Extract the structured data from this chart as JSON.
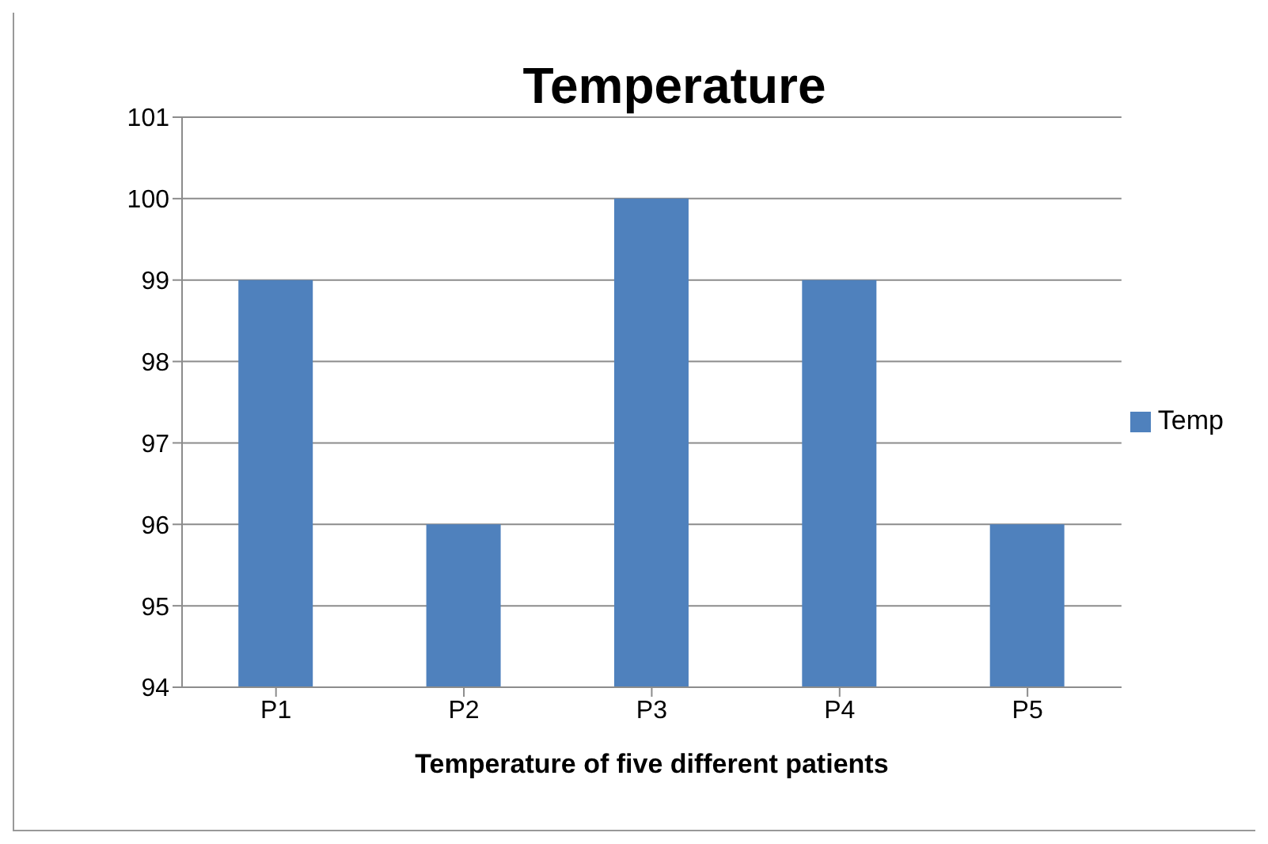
{
  "chart_data": {
    "type": "bar",
    "title": "Temperature",
    "xlabel": "Temperature of five different patients",
    "categories": [
      "P1",
      "P2",
      "P3",
      "P4",
      "P5"
    ],
    "series": [
      {
        "name": "Temp",
        "color": "#4f81bd",
        "values": [
          99,
          96,
          100,
          99,
          96
        ]
      }
    ],
    "ylim": [
      94,
      101
    ],
    "yticks": [
      94,
      95,
      96,
      97,
      98,
      99,
      100,
      101
    ],
    "grid": "y",
    "legend": "right"
  }
}
